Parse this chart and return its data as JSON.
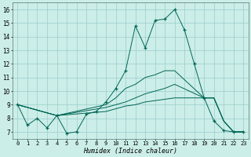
{
  "background_color": "#cceee8",
  "grid_color": "#99cccc",
  "line_color": "#006655",
  "xlim": [
    -0.5,
    23.5
  ],
  "ylim": [
    6.5,
    16.5
  ],
  "xticks": [
    0,
    1,
    2,
    3,
    4,
    5,
    6,
    7,
    8,
    9,
    10,
    11,
    12,
    13,
    14,
    15,
    16,
    17,
    18,
    19,
    20,
    21,
    22,
    23
  ],
  "yticks": [
    7,
    8,
    9,
    10,
    11,
    12,
    13,
    14,
    15,
    16
  ],
  "xlabel": "Humidex (Indice chaleur)",
  "line1_x": [
    0,
    1,
    2,
    3,
    4,
    5,
    6,
    7,
    8,
    9,
    10,
    11,
    12,
    13,
    14,
    15,
    16,
    17,
    18,
    19,
    20,
    21,
    22,
    23
  ],
  "line1_y": [
    9.0,
    7.5,
    8.0,
    7.3,
    8.2,
    6.9,
    7.0,
    8.3,
    8.5,
    9.2,
    10.2,
    11.5,
    14.8,
    13.2,
    15.2,
    15.3,
    16.0,
    14.5,
    12.0,
    9.5,
    7.8,
    7.1,
    7.0,
    7.0
  ],
  "line2_x": [
    0,
    4,
    9,
    10,
    11,
    12,
    13,
    14,
    15,
    16,
    19,
    20,
    21,
    22,
    23
  ],
  "line2_y": [
    9.0,
    8.2,
    9.0,
    9.5,
    10.2,
    10.5,
    11.0,
    11.2,
    11.5,
    11.5,
    9.5,
    9.5,
    7.8,
    7.0,
    7.0
  ],
  "line3_x": [
    0,
    4,
    9,
    10,
    11,
    12,
    13,
    14,
    15,
    16,
    19,
    20,
    21,
    22,
    23
  ],
  "line3_y": [
    9.0,
    8.2,
    8.8,
    9.0,
    9.2,
    9.5,
    9.8,
    10.0,
    10.2,
    10.5,
    9.5,
    9.5,
    7.8,
    7.0,
    7.0
  ],
  "line4_x": [
    0,
    4,
    9,
    10,
    11,
    12,
    13,
    14,
    15,
    16,
    19,
    20,
    21,
    22,
    23
  ],
  "line4_y": [
    9.0,
    8.2,
    8.5,
    8.7,
    8.9,
    9.0,
    9.2,
    9.3,
    9.4,
    9.5,
    9.5,
    9.5,
    7.8,
    7.0,
    7.0
  ]
}
